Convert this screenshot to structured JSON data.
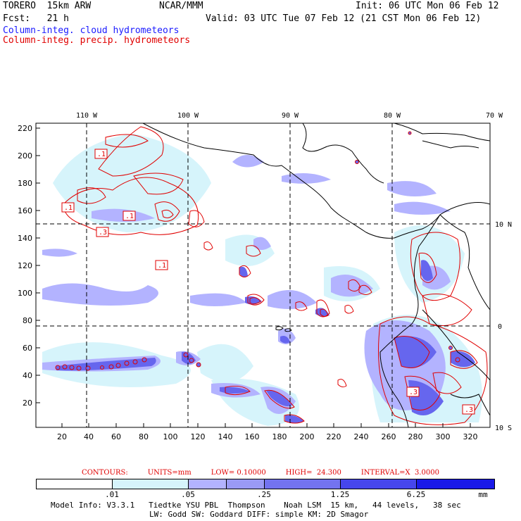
{
  "header": {
    "model": "TORERO  15km ARW",
    "org": "NCAR/MMM",
    "init": "Init: 06 UTC Mon 06 Feb 12",
    "fcst": "Fcst:   21 h",
    "valid": "Valid: 03 UTC Tue 07 Feb 12 (21 CST Mon 06 Feb 12)",
    "legend_cloud": "Column-integ. cloud hydrometeors",
    "legend_precip": "Column-integ. precip. hydrometeors"
  },
  "map": {
    "x_ticks": [
      "20",
      "40",
      "60",
      "80",
      "100",
      "120",
      "140",
      "160",
      "180",
      "200",
      "220",
      "240",
      "260",
      "280",
      "300",
      "320"
    ],
    "y_ticks": [
      "220",
      "200",
      "180",
      "160",
      "140",
      "120",
      "100",
      "80",
      "60",
      "40",
      "20"
    ],
    "lon_labels": [
      "110 W",
      "100 W",
      "90 W",
      "80 W",
      "70 W"
    ],
    "lat_labels": [
      "10 N",
      "0",
      "10 S"
    ],
    "contour_labels": [
      ".1",
      ".1",
      ".1",
      ".3",
      ".1",
      ".3",
      ".3"
    ]
  },
  "contours_line": {
    "label": "CONTOURS:",
    "units": "UNITS=mm",
    "low": "LOW= 0.10000",
    "high": "HIGH=  24.300",
    "interval": "INTERVAL=X  3.0000"
  },
  "colorbar": {
    "labels": [
      ".01",
      ".05",
      ".25",
      "1.25",
      "6.25",
      "mm"
    ],
    "colors": [
      "#ffffff",
      "#d6f4fb",
      "#b3b3ff",
      "#8c8cf2",
      "#6666ee",
      "#4040ea",
      "#1a1ae8"
    ]
  },
  "footer": {
    "line1": "Model Info: V3.3.1   Tiedtke YSU PBL  Thompson    Noah LSM  15 km,   44 levels,   38 sec",
    "line2": "LW: Godd SW: Goddard DIFF: simple KM: 2D Smagor"
  }
}
